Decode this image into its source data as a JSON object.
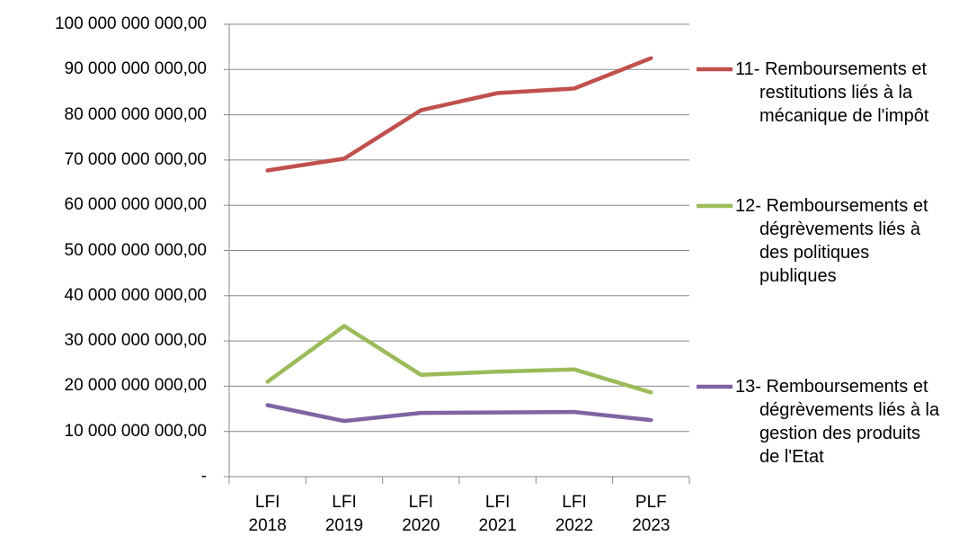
{
  "chart_data": {
    "type": "line",
    "categories": [
      "LFI 2018",
      "LFI 2019",
      "LFI 2020",
      "LFI 2021",
      "LFI 2022",
      "PLF 2023"
    ],
    "series": [
      {
        "name": "11- Remboursements et restitutions liés à la mécanique de l'impôt",
        "color": "#c0504d",
        "values": [
          67700000000,
          70300000000,
          81000000000,
          84800000000,
          85800000000,
          92500000000
        ]
      },
      {
        "name": "12- Remboursements et dégrèvements liés à des politiques publiques",
        "color": "#9bbb59",
        "values": [
          21000000000,
          33300000000,
          22500000000,
          23200000000,
          23700000000,
          18600000000
        ]
      },
      {
        "name": "13- Remboursements et dégrèvements liés à la gestion des produits de l'Etat",
        "color": "#8064a2",
        "values": [
          15800000000,
          12300000000,
          14100000000,
          14200000000,
          14300000000,
          12500000000
        ]
      }
    ],
    "ylim": [
      0,
      100000000000
    ],
    "yticks": [
      {
        "value": 0,
        "label": "-"
      },
      {
        "value": 10000000000,
        "label": "10 000 000 000,00"
      },
      {
        "value": 20000000000,
        "label": "20 000 000 000,00"
      },
      {
        "value": 30000000000,
        "label": "30 000 000 000,00"
      },
      {
        "value": 40000000000,
        "label": "40 000 000 000,00"
      },
      {
        "value": 50000000000,
        "label": "50 000 000 000,00"
      },
      {
        "value": 60000000000,
        "label": "60 000 000 000,00"
      },
      {
        "value": 70000000000,
        "label": "70 000 000 000,00"
      },
      {
        "value": 80000000000,
        "label": "80 000 000 000,00"
      },
      {
        "value": 90000000000,
        "label": "90 000 000 000,00"
      },
      {
        "value": 100000000000,
        "label": "100 000 000 000,00"
      }
    ],
    "grid": true,
    "legend": "right"
  }
}
